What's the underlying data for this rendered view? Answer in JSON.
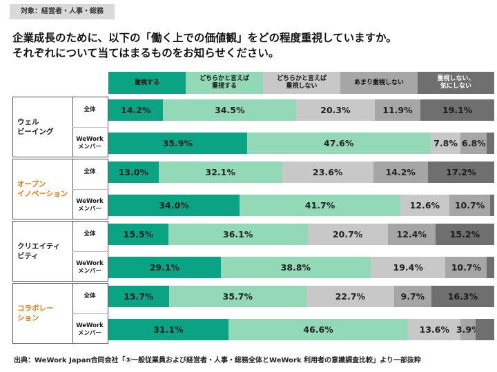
{
  "tag": "対象：経営者・人事・総務",
  "title_lines": [
    "企業成長のために、以下の「働く上での価値観」をどの程度重視していますか。",
    "それぞれについて当てはまるものをお知らせください。"
  ],
  "source": "出典：WeWork Japan合同会社「③一般従業員および経営者・人事・総務全体とWeWork 利用者の意識調査比較」より一部抜粋",
  "colors": {
    "seg": [
      "#0aa383",
      "#94d9b7",
      "#c8c8c8",
      "#a6a6a6",
      "#6f6f6f"
    ],
    "legend_text": [
      "#111111",
      "#111111",
      "#111111",
      "#111111",
      "#ffffff"
    ],
    "topic_highlight": "#e8740c",
    "topic_normal": "#1a1a1a"
  },
  "chart_data": {
    "type": "bar",
    "orientation": "horizontal-stacked-100",
    "legend": [
      "重視する",
      "どちらかと言えば\n重視する",
      "どちらかと言えば\n重視しない",
      "あまり重視しない",
      "重視しない、\n気にしない"
    ],
    "groups": [
      {
        "topic": "ウェル\nビーイング",
        "highlight": false,
        "rows": [
          {
            "label": "全体",
            "values": [
              14.2,
              34.5,
              20.3,
              11.9,
              19.1
            ],
            "labels": [
              "14.2%",
              "34.5%",
              "20.3%",
              "11.9%",
              "19.1%"
            ]
          },
          {
            "label": "WeWork\nメンバー",
            "values": [
              35.9,
              47.6,
              7.8,
              6.8,
              1.9
            ],
            "labels": [
              "35.9%",
              "47.6%",
              "7.8%",
              "6.8%",
              ""
            ]
          }
        ]
      },
      {
        "topic": "オープン\nイノベーション",
        "highlight": true,
        "rows": [
          {
            "label": "全体",
            "values": [
              13.0,
              32.1,
              23.6,
              14.2,
              17.2
            ],
            "labels": [
              "13.0%",
              "32.1%",
              "23.6%",
              "14.2%",
              "17.2%"
            ]
          },
          {
            "label": "WeWork\nメンバー",
            "values": [
              34.0,
              41.7,
              12.6,
              10.7,
              1.0
            ],
            "labels": [
              "34.0%",
              "41.7%",
              "12.6%",
              "10.7%",
              ""
            ]
          }
        ]
      },
      {
        "topic": "クリエイティ\nビティ",
        "highlight": false,
        "rows": [
          {
            "label": "全体",
            "values": [
              15.5,
              36.1,
              20.7,
              12.4,
              15.2
            ],
            "labels": [
              "15.5%",
              "36.1%",
              "20.7%",
              "12.4%",
              "15.2%"
            ]
          },
          {
            "label": "WeWork\nメンバー",
            "values": [
              29.1,
              38.8,
              19.4,
              10.7,
              1.9
            ],
            "labels": [
              "29.1%",
              "38.8%",
              "19.4%",
              "10.7%",
              ""
            ]
          }
        ]
      },
      {
        "topic": "コラボレー\nション",
        "highlight": true,
        "rows": [
          {
            "label": "全体",
            "values": [
              15.7,
              35.7,
              22.7,
              9.7,
              16.3
            ],
            "labels": [
              "15.7%",
              "35.7%",
              "22.7%",
              "9.7%",
              "16.3%"
            ]
          },
          {
            "label": "WeWork\nメンバー",
            "values": [
              31.1,
              46.6,
              13.6,
              3.9,
              4.8
            ],
            "labels": [
              "31.1%",
              "46.6%",
              "13.6%",
              "3.9%",
              ""
            ]
          }
        ]
      }
    ]
  }
}
